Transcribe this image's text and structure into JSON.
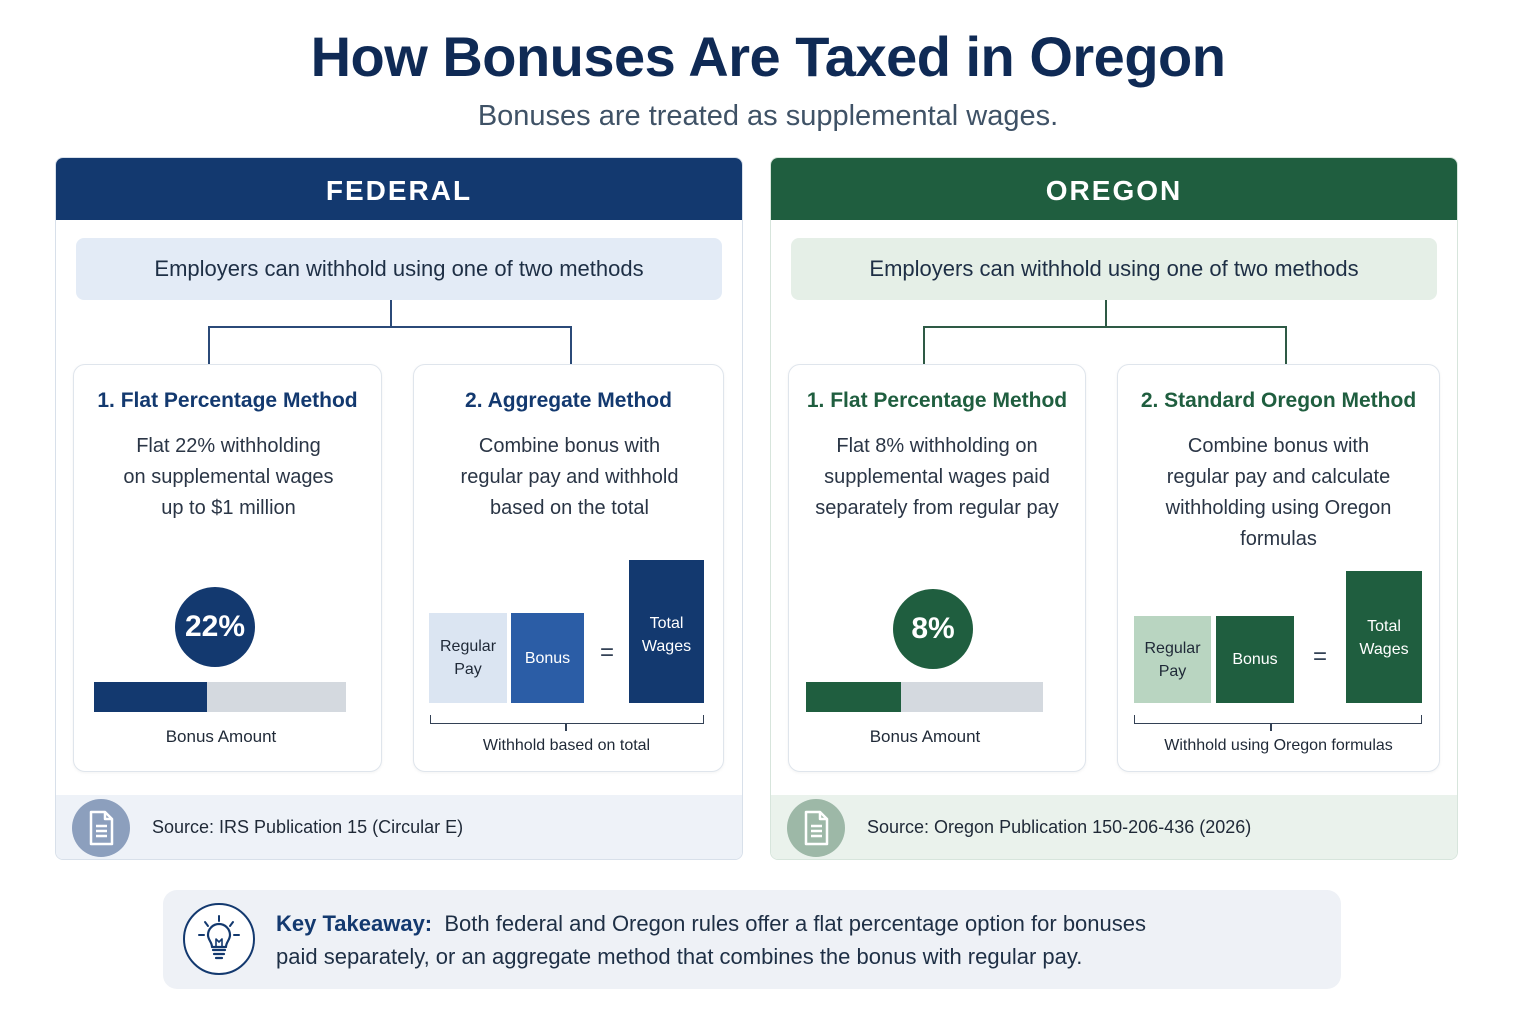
{
  "title": "How Bonuses Are Taxed in Oregon",
  "subtitle": "Bonuses are treated as supplemental wages.",
  "colors": {
    "federal_primary": "#13396f",
    "federal_mid": "#2b5da6",
    "federal_light": "#dbe5f2",
    "oregon_primary": "#1f5e3f",
    "oregon_mid": "#246b47",
    "oregon_light": "#b9d5c1"
  },
  "federal": {
    "header": "FEDERAL",
    "intro": "Employers can withhold using one of two methods",
    "method1": {
      "title": "1.  Flat Percentage Method",
      "desc_lines": [
        "Flat 22% withholding",
        "on supplemental wages",
        "up to $1 million"
      ],
      "rate_label": "22%",
      "bar_fill_fraction": 0.45,
      "bar_label": "Bonus Amount"
    },
    "method2": {
      "title": "2.  Aggregate Method",
      "desc_lines": [
        "Combine bonus with",
        "regular pay and withhold",
        "based on the total"
      ],
      "regular_pay": "Regular Pay",
      "bonus": "Bonus",
      "equals": "=",
      "total_wages": "Total Wages",
      "bracket_label": "Withhold based on total"
    },
    "source_icon": "document-icon",
    "source": "Source: IRS Publication 15 (Circular E)"
  },
  "oregon": {
    "header": "OREGON",
    "intro": "Employers can withhold using one of two methods",
    "method1": {
      "title": "1.  Flat Percentage Method",
      "desc_lines": [
        "Flat 8% withholding on",
        "supplemental wages paid",
        "separately from regular pay"
      ],
      "rate_label": "8%",
      "bar_fill_fraction": 0.4,
      "bar_label": "Bonus Amount"
    },
    "method2": {
      "title": "2.  Standard Oregon Method",
      "desc_lines": [
        "Combine bonus with",
        "regular pay and calculate",
        "withholding using Oregon",
        "formulas"
      ],
      "regular_pay": "Regular Pay",
      "bonus": "Bonus",
      "equals": "=",
      "total_wages": "Total Wages",
      "bracket_label": "Withhold using Oregon formulas"
    },
    "source_icon": "document-icon",
    "source": "Source: Oregon Publication 150-206-436 (2026)"
  },
  "takeaway": {
    "icon": "lightbulb-icon",
    "label": "Key Takeaway:",
    "line1": "Both federal and Oregon rules offer a flat percentage option for bonuses",
    "line2": "paid separately, or an aggregate method that combines the bonus with regular pay."
  }
}
